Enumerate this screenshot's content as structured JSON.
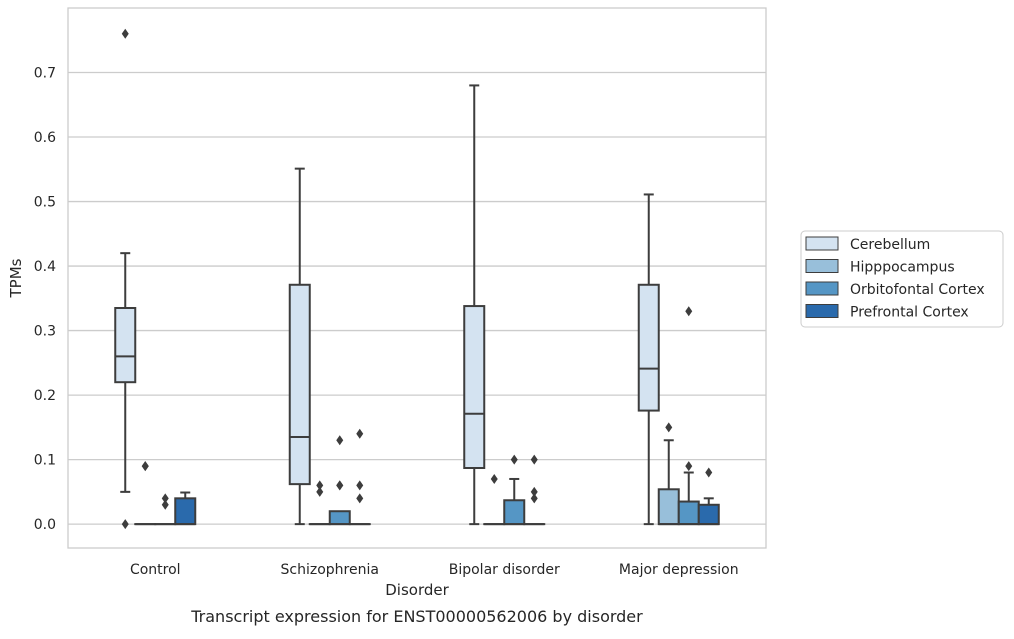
{
  "chart_data": {
    "type": "box",
    "caption": "Transcript expression for ENST00000562006 by disorder",
    "xlabel": "Disorder",
    "ylabel": "TPMs",
    "ylim": [
      -0.037,
      0.8
    ],
    "yticks": [
      "0.0",
      "0.1",
      "0.2",
      "0.3",
      "0.4",
      "0.5",
      "0.6",
      "0.7"
    ],
    "categories": [
      "Control",
      "Schizophrenia",
      "Bipolar disorder",
      "Major depression"
    ],
    "grid": true,
    "legend_position": "right-outside",
    "series": [
      {
        "name": "Cerebellum",
        "color": "#d4e3f1",
        "boxes": [
          {
            "whislo": 0.05,
            "q1": 0.22,
            "med": 0.26,
            "q3": 0.335,
            "whishi": 0.42,
            "fliers": [
              0.0,
              0.76
            ]
          },
          {
            "whislo": 0.0,
            "q1": 0.062,
            "med": 0.135,
            "q3": 0.371,
            "whishi": 0.551,
            "fliers": []
          },
          {
            "whislo": 0.0,
            "q1": 0.087,
            "med": 0.171,
            "q3": 0.338,
            "whishi": 0.68,
            "fliers": []
          },
          {
            "whislo": 0.0,
            "q1": 0.176,
            "med": 0.241,
            "q3": 0.371,
            "whishi": 0.511,
            "fliers": []
          }
        ]
      },
      {
        "name": "Hipppocampus",
        "color": "#98bfda",
        "boxes": [
          {
            "whislo": 0.0,
            "q1": 0.0,
            "med": 0.0,
            "q3": 0.0,
            "whishi": 0.0,
            "fliers": [
              0.09,
              0.09
            ]
          },
          {
            "whislo": 0.0,
            "q1": 0.0,
            "med": 0.0,
            "q3": 0.0,
            "whishi": 0.0,
            "fliers": [
              0.05,
              0.06
            ]
          },
          {
            "whislo": 0.0,
            "q1": 0.0,
            "med": 0.0,
            "q3": 0.0,
            "whishi": 0.0,
            "fliers": [
              0.07
            ]
          },
          {
            "whislo": 0.0,
            "q1": 0.0,
            "med": 0.0,
            "q3": 0.054,
            "whishi": 0.13,
            "fliers": [
              0.15
            ]
          }
        ]
      },
      {
        "name": "Orbitofontal Cortex",
        "color": "#5596c5",
        "boxes": [
          {
            "whislo": 0.0,
            "q1": 0.0,
            "med": 0.0,
            "q3": 0.0,
            "whishi": 0.0,
            "fliers": [
              0.03,
              0.04
            ]
          },
          {
            "whislo": 0.0,
            "q1": 0.0,
            "med": 0.0,
            "q3": 0.02,
            "whishi": 0.02,
            "fliers": [
              0.06,
              0.06,
              0.13
            ]
          },
          {
            "whislo": 0.0,
            "q1": 0.0,
            "med": 0.0,
            "q3": 0.037,
            "whishi": 0.07,
            "fliers": [
              0.1
            ]
          },
          {
            "whislo": 0.0,
            "q1": 0.0,
            "med": 0.0,
            "q3": 0.035,
            "whishi": 0.08,
            "fliers": [
              0.09,
              0.33
            ]
          }
        ]
      },
      {
        "name": "Prefrontal Cortex",
        "color": "#2a6aac",
        "boxes": [
          {
            "whislo": 0.0,
            "q1": 0.0,
            "med": 0.0,
            "q3": 0.04,
            "whishi": 0.049,
            "fliers": []
          },
          {
            "whislo": 0.0,
            "q1": 0.0,
            "med": 0.0,
            "q3": 0.0,
            "whishi": 0.0,
            "fliers": [
              0.04,
              0.06,
              0.14
            ]
          },
          {
            "whislo": 0.0,
            "q1": 0.0,
            "med": 0.0,
            "q3": 0.0,
            "whishi": 0.0,
            "fliers": [
              0.04,
              0.05,
              0.1
            ]
          },
          {
            "whislo": 0.0,
            "q1": 0.0,
            "med": 0.0,
            "q3": 0.03,
            "whishi": 0.04,
            "fliers": [
              0.08
            ]
          }
        ]
      }
    ]
  }
}
